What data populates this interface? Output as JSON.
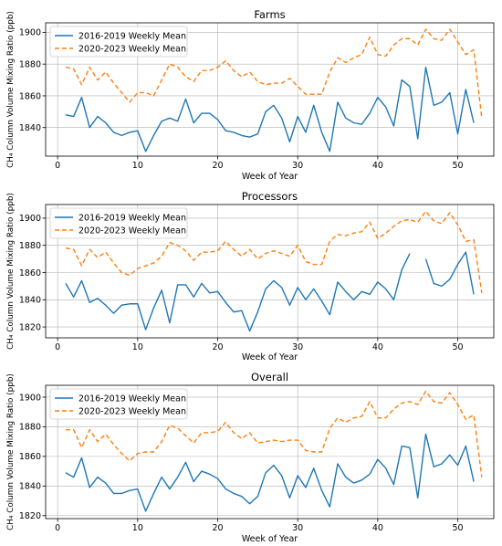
{
  "chart_data": [
    {
      "type": "line",
      "title": "Farms",
      "xlabel": "Week of Year",
      "ylabel": "CH₄ Column Volume Mixing Ratio (ppb)",
      "xlim": [
        -1.5,
        54.5
      ],
      "ylim": [
        1822,
        1906
      ],
      "xticks": [
        0,
        10,
        20,
        30,
        40,
        50
      ],
      "yticks": [
        1840,
        1860,
        1880,
        1900
      ],
      "grid": true,
      "legend": "upper-left",
      "series": [
        {
          "name": "2016-2019 Weekly Mean",
          "color": "#1f77b4",
          "style": "solid",
          "x": [
            1,
            2,
            3,
            4,
            5,
            6,
            7,
            8,
            9,
            10,
            11,
            12,
            13,
            14,
            15,
            16,
            17,
            18,
            19,
            20,
            21,
            22,
            23,
            24,
            25,
            26,
            27,
            28,
            29,
            30,
            31,
            32,
            33,
            34,
            35,
            36,
            37,
            38,
            39,
            40,
            41,
            42,
            43,
            44,
            45,
            46,
            47,
            48,
            49,
            50,
            51,
            52
          ],
          "values": [
            1848,
            1847,
            1859,
            1840,
            1847,
            1843,
            1837,
            1835,
            1837,
            1838,
            1825,
            1835,
            1844,
            1846,
            1844,
            1858,
            1843,
            1849,
            1849,
            1845,
            1838,
            1837,
            1835,
            1834,
            1836,
            1850,
            1854,
            1846,
            1831,
            1847,
            1837,
            1854,
            1837,
            1825,
            1856,
            1846,
            1843,
            1842,
            1849,
            1859,
            1853,
            1841,
            1870,
            1866,
            1833,
            1878,
            1854,
            1856,
            1862,
            1836,
            1864,
            1843
          ]
        },
        {
          "name": "2020-2023 Weekly Mean",
          "color": "#ff7f0e",
          "style": "dashed",
          "x": [
            1,
            2,
            3,
            4,
            5,
            6,
            7,
            8,
            9,
            10,
            11,
            12,
            13,
            14,
            15,
            16,
            17,
            18,
            19,
            20,
            21,
            22,
            23,
            24,
            25,
            26,
            27,
            28,
            29,
            30,
            31,
            32,
            33,
            34,
            35,
            36,
            37,
            38,
            39,
            40,
            41,
            42,
            43,
            44,
            45,
            46,
            47,
            48,
            49,
            50,
            51,
            52,
            53
          ],
          "values": [
            1878,
            1877,
            1867,
            1878,
            1870,
            1875,
            1868,
            1862,
            1856,
            1862,
            1862,
            1860,
            1870,
            1880,
            1878,
            1872,
            1869,
            1876,
            1876,
            1878,
            1882,
            1876,
            1872,
            1875,
            1869,
            1867,
            1868,
            1868,
            1871,
            1866,
            1861,
            1861,
            1861,
            1875,
            1884,
            1881,
            1884,
            1886,
            1897,
            1886,
            1885,
            1892,
            1896,
            1896,
            1892,
            1902,
            1896,
            1895,
            1902,
            1894,
            1886,
            1889,
            1846
          ]
        }
      ]
    },
    {
      "type": "line",
      "title": "Processors",
      "xlabel": "Week of Year",
      "ylabel": "CH₄ Column Volume Mixing Ratio (ppb)",
      "xlim": [
        -1.5,
        54.5
      ],
      "ylim": [
        1812,
        1910
      ],
      "xticks": [
        0,
        10,
        20,
        30,
        40,
        50
      ],
      "yticks": [
        1820,
        1840,
        1860,
        1880,
        1900
      ],
      "grid": true,
      "legend": "upper-left",
      "series": [
        {
          "name": "2016-2019 Weekly Mean",
          "color": "#1f77b4",
          "style": "solid",
          "x": [
            1,
            2,
            3,
            4,
            5,
            6,
            7,
            8,
            9,
            10,
            11,
            12,
            13,
            14,
            15,
            16,
            17,
            18,
            19,
            20,
            21,
            22,
            23,
            24,
            25,
            26,
            27,
            28,
            29,
            30,
            31,
            32,
            33,
            34,
            35,
            36,
            37,
            38,
            39,
            40,
            41,
            42,
            43,
            44,
            45,
            46,
            47,
            48,
            49,
            50,
            51,
            52
          ],
          "values": [
            1852,
            1842,
            1854,
            1838,
            1841,
            1836,
            1830,
            1836,
            1837,
            1837,
            1818,
            1834,
            1847,
            1823,
            1851,
            1851,
            1842,
            1852,
            1845,
            1846,
            1838,
            1831,
            1832,
            1817,
            1831,
            1848,
            1854,
            1849,
            1836,
            1849,
            1840,
            1848,
            1839,
            1829,
            1853,
            1846,
            1840,
            1846,
            1844,
            1853,
            1848,
            1840,
            1862,
            1874,
            null,
            1870,
            1852,
            1850,
            1855,
            1866,
            1875,
            1844
          ]
        },
        {
          "name": "2020-2023 Weekly Mean",
          "color": "#ff7f0e",
          "style": "dashed",
          "x": [
            1,
            2,
            3,
            4,
            5,
            6,
            7,
            8,
            9,
            10,
            11,
            12,
            13,
            14,
            15,
            16,
            17,
            18,
            19,
            20,
            21,
            22,
            23,
            24,
            25,
            26,
            27,
            28,
            29,
            30,
            31,
            32,
            33,
            34,
            35,
            36,
            37,
            38,
            39,
            40,
            41,
            42,
            43,
            44,
            45,
            46,
            47,
            48,
            49,
            50,
            51,
            52,
            53
          ],
          "values": [
            1878,
            1877,
            1865,
            1877,
            1871,
            1875,
            1867,
            1860,
            1858,
            1863,
            1865,
            1867,
            1872,
            1882,
            1880,
            1876,
            1869,
            1875,
            1875,
            1876,
            1883,
            1877,
            1872,
            1877,
            1870,
            1874,
            1876,
            1874,
            1872,
            1880,
            1868,
            1866,
            1866,
            1883,
            1888,
            1887,
            1889,
            1890,
            1897,
            1885,
            1889,
            1894,
            1898,
            1899,
            1897,
            1905,
            1898,
            1896,
            1904,
            1895,
            1883,
            1884,
            1845
          ]
        }
      ]
    },
    {
      "type": "line",
      "title": "Overall",
      "xlabel": "Week of Year",
      "ylabel": "CH₄ Column Volume Mixing Ratio (ppb)",
      "xlim": [
        -1.5,
        54.5
      ],
      "ylim": [
        1818,
        1908
      ],
      "xticks": [
        0,
        10,
        20,
        30,
        40,
        50
      ],
      "yticks": [
        1820,
        1840,
        1860,
        1880,
        1900
      ],
      "grid": true,
      "legend": "upper-left",
      "series": [
        {
          "name": "2016-2019 Weekly Mean",
          "color": "#1f77b4",
          "style": "solid",
          "x": [
            1,
            2,
            3,
            4,
            5,
            6,
            7,
            8,
            9,
            10,
            11,
            12,
            13,
            14,
            15,
            16,
            17,
            18,
            19,
            20,
            21,
            22,
            23,
            24,
            25,
            26,
            27,
            28,
            29,
            30,
            31,
            32,
            33,
            34,
            35,
            36,
            37,
            38,
            39,
            40,
            41,
            42,
            43,
            44,
            45,
            46,
            47,
            48,
            49,
            50,
            51,
            52
          ],
          "values": [
            1849,
            1846,
            1859,
            1839,
            1846,
            1842,
            1835,
            1835,
            1837,
            1838,
            1823,
            1835,
            1846,
            1838,
            1846,
            1856,
            1843,
            1850,
            1848,
            1845,
            1838,
            1835,
            1833,
            1828,
            1833,
            1849,
            1854,
            1847,
            1832,
            1847,
            1839,
            1852,
            1837,
            1826,
            1855,
            1846,
            1842,
            1844,
            1848,
            1858,
            1852,
            1841,
            1867,
            1866,
            1832,
            1875,
            1853,
            1855,
            1861,
            1854,
            1867,
            1843
          ]
        },
        {
          "name": "2020-2023 Weekly Mean",
          "color": "#ff7f0e",
          "style": "dashed",
          "x": [
            1,
            2,
            3,
            4,
            5,
            6,
            7,
            8,
            9,
            10,
            11,
            12,
            13,
            14,
            15,
            16,
            17,
            18,
            19,
            20,
            21,
            22,
            23,
            24,
            25,
            26,
            27,
            28,
            29,
            30,
            31,
            32,
            33,
            34,
            35,
            36,
            37,
            38,
            39,
            40,
            41,
            42,
            43,
            44,
            45,
            46,
            47,
            48,
            49,
            50,
            51,
            52,
            53
          ],
          "values": [
            1878,
            1878,
            1866,
            1878,
            1870,
            1875,
            1868,
            1862,
            1857,
            1862,
            1863,
            1863,
            1870,
            1881,
            1879,
            1874,
            1869,
            1876,
            1876,
            1877,
            1883,
            1876,
            1872,
            1876,
            1869,
            1870,
            1871,
            1870,
            1871,
            1871,
            1864,
            1863,
            1863,
            1879,
            1886,
            1883,
            1886,
            1887,
            1897,
            1886,
            1886,
            1892,
            1896,
            1897,
            1895,
            1904,
            1897,
            1896,
            1903,
            1895,
            1885,
            1888,
            1846
          ]
        }
      ]
    }
  ]
}
